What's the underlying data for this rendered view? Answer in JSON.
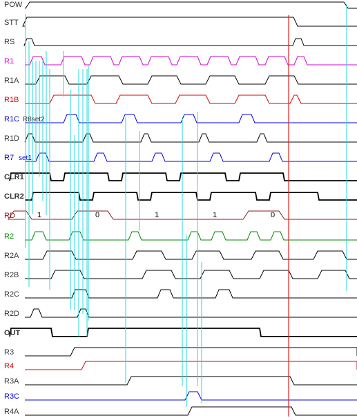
{
  "colors": {
    "black": "#000000",
    "magenta": "#d400d4",
    "red": "#e00000",
    "blue": "#0000e0",
    "brown": "#8b1a1a",
    "green": "#008a00",
    "cyan": "#22d8e0",
    "marker_red": "#e02020"
  },
  "signals": [
    {
      "label": "POW",
      "color": "black"
    },
    {
      "label": "STT",
      "color": "black"
    },
    {
      "label": "RS",
      "color": "black"
    },
    {
      "label": "R1",
      "color": "magenta"
    },
    {
      "label": "R1A",
      "color": "black"
    },
    {
      "label": "R1B",
      "color": "red"
    },
    {
      "label": "R1C",
      "color": "blue",
      "note": "R8set2"
    },
    {
      "label": "R1D",
      "color": "black"
    },
    {
      "label": "R7",
      "color": "blue",
      "note": "set1"
    },
    {
      "label": "CLR1",
      "color": "black",
      "bold": true
    },
    {
      "label": "CLR2",
      "color": "black",
      "bold": true
    },
    {
      "label": "RD",
      "color": "brown"
    },
    {
      "label": "R2",
      "color": "green"
    },
    {
      "label": "R2A",
      "color": "black"
    },
    {
      "label": "R2B",
      "color": "black"
    },
    {
      "label": "R2C",
      "color": "black"
    },
    {
      "label": "R2D",
      "color": "black"
    },
    {
      "label": "OUT",
      "color": "black",
      "bold": true
    },
    {
      "label": "R3",
      "color": "black"
    },
    {
      "label": "R4",
      "color": "red"
    },
    {
      "label": "R3A",
      "color": "black"
    },
    {
      "label": "R3C",
      "color": "blue"
    },
    {
      "label": "R4A",
      "color": "black"
    }
  ],
  "rd_values": [
    "1",
    "0",
    "1",
    "1",
    "0"
  ]
}
